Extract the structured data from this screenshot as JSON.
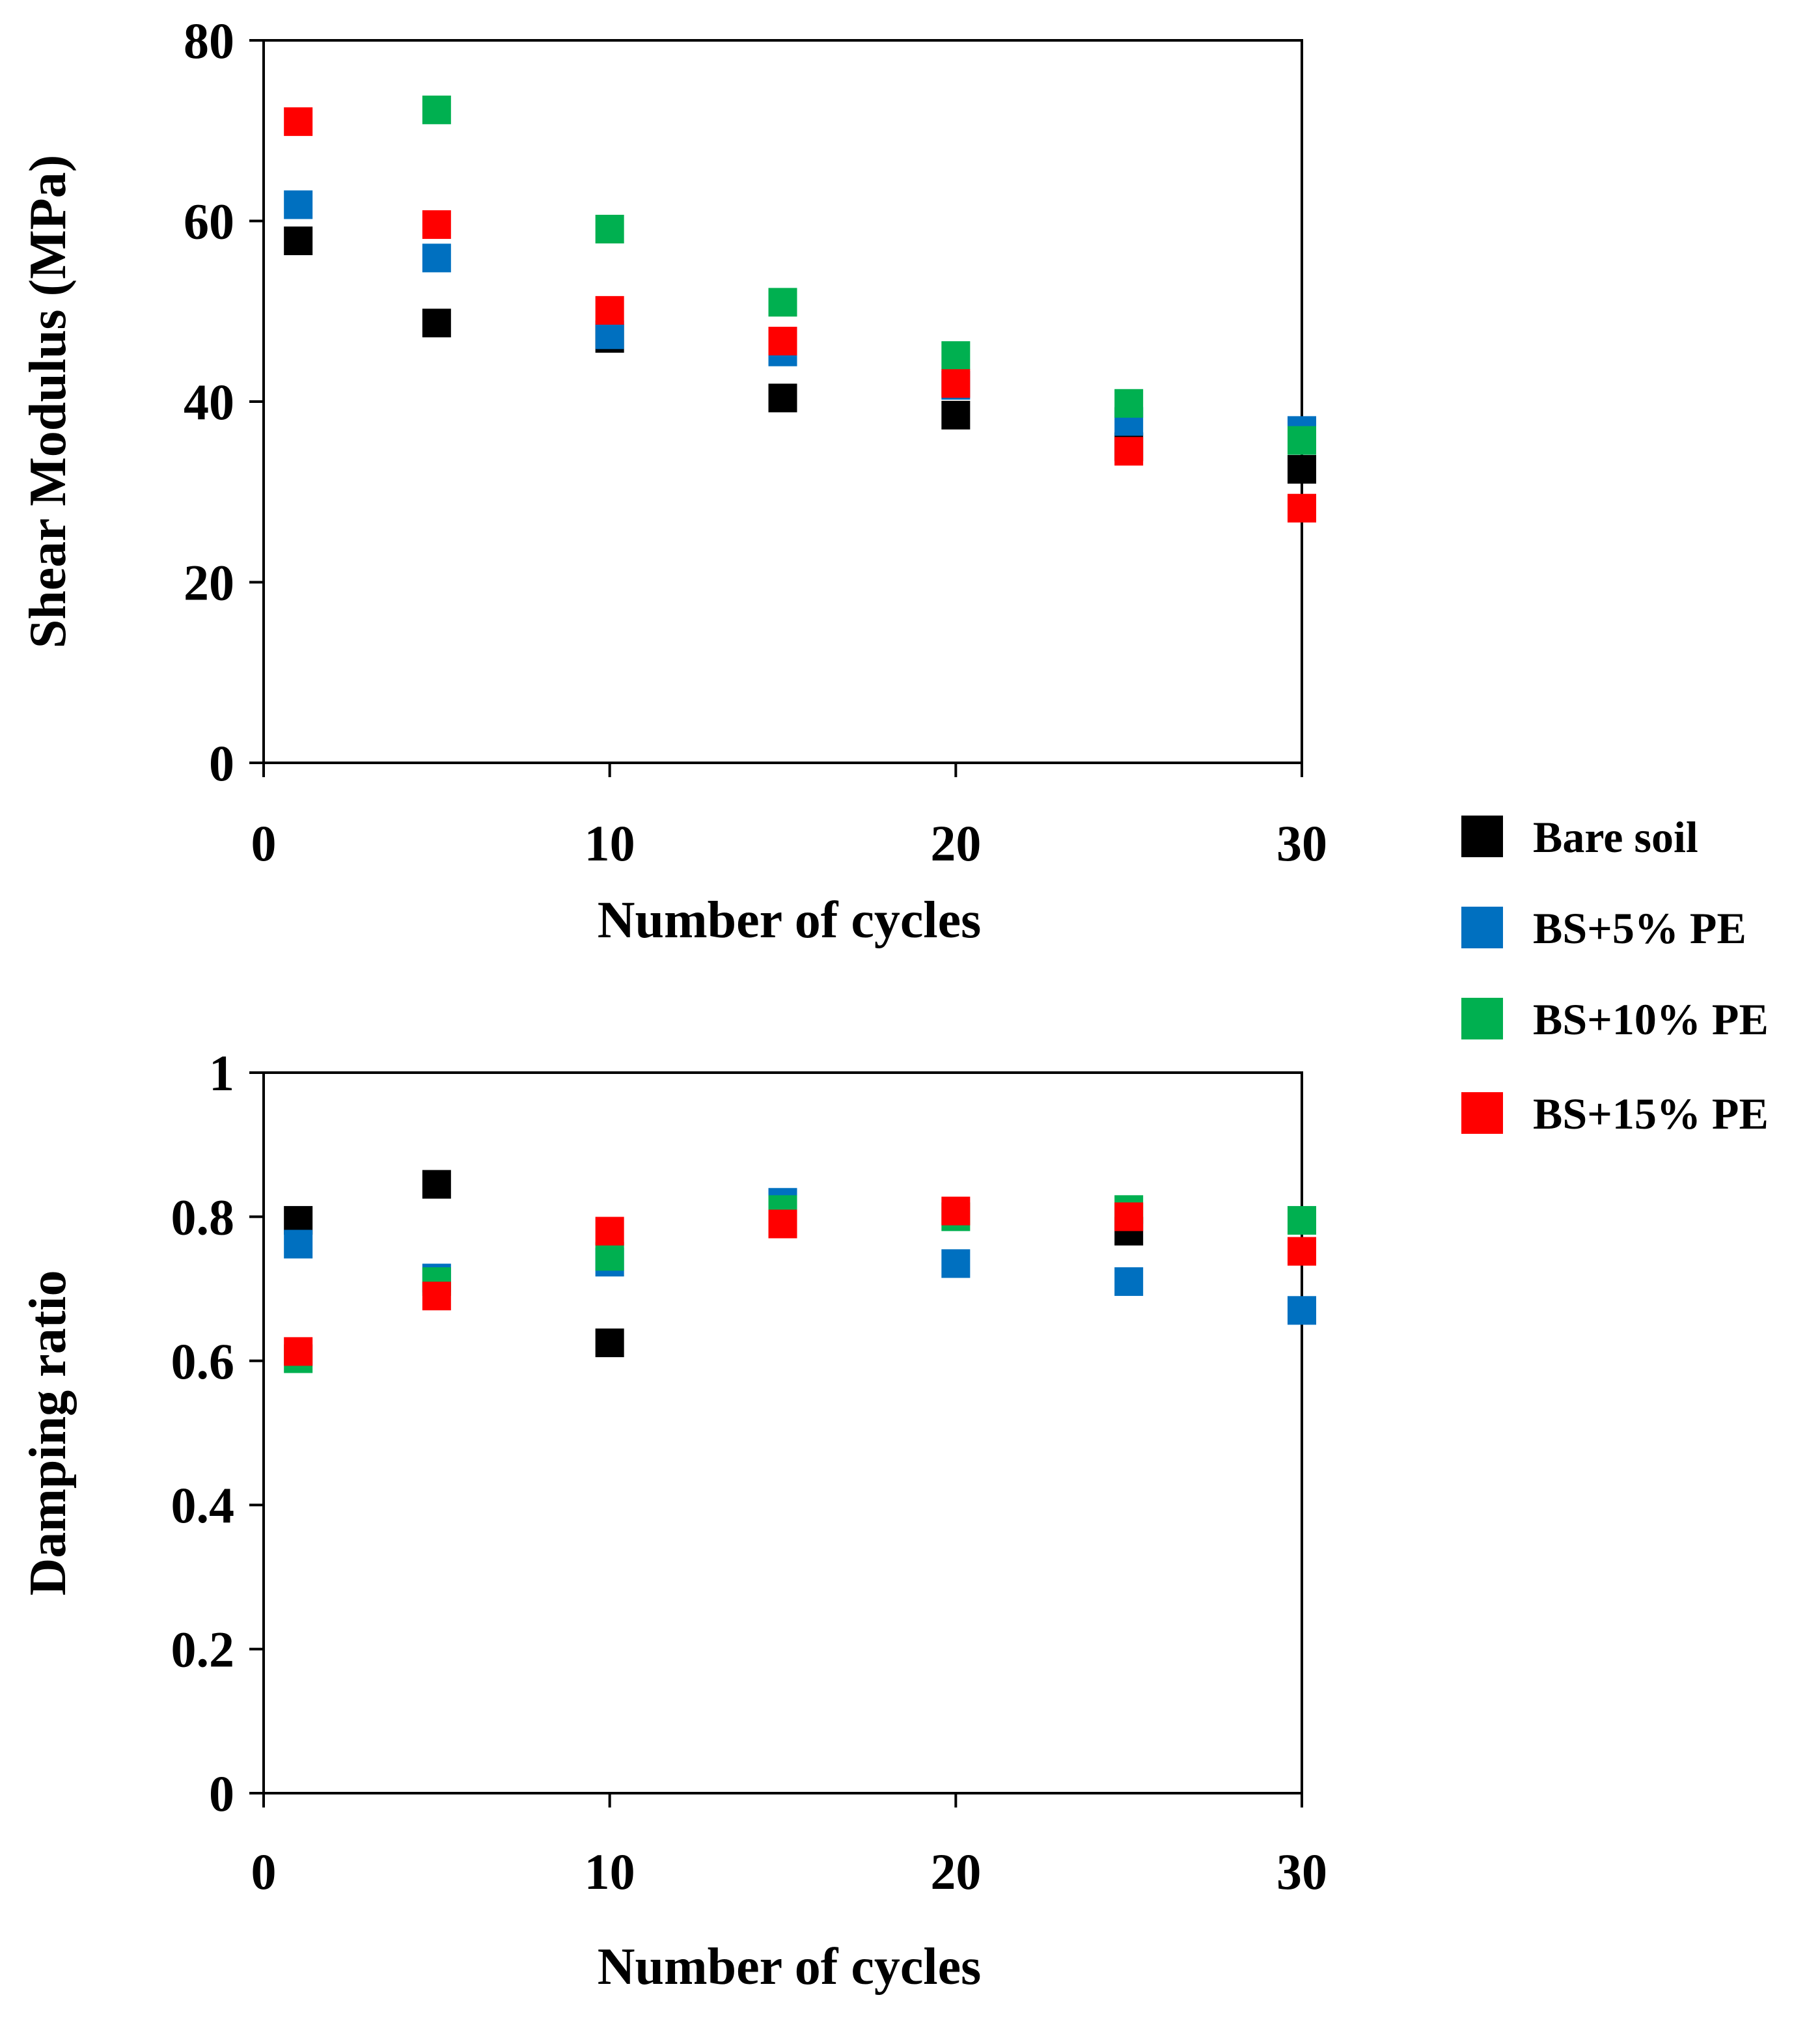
{
  "legend": {
    "entries": [
      {
        "label": "Bare soil",
        "color": "#000000"
      },
      {
        "label": "BS+5% PE",
        "color": "#0070C0"
      },
      {
        "label": "BS+10% PE",
        "color": "#00B050"
      },
      {
        "label": "BS+15% PE",
        "color": "#FF0000"
      }
    ]
  },
  "chart_data": [
    {
      "type": "scatter",
      "title": "",
      "xlabel": "Number of cycles",
      "ylabel": "Shear Modulus (MPa)",
      "xlim": [
        0,
        30
      ],
      "ylim": [
        0,
        80
      ],
      "xticks": [
        "0",
        "10",
        "20",
        "30"
      ],
      "yticks": [
        "0",
        "20",
        "40",
        "60",
        "80"
      ],
      "x": [
        1,
        5,
        10,
        15,
        20,
        25,
        30
      ],
      "series": [
        {
          "name": "Bare soil",
          "color": "#000000",
          "values": [
            57.8,
            48.7,
            47.0,
            40.4,
            38.5,
            35.0,
            32.5
          ]
        },
        {
          "name": "BS+5% PE",
          "color": "#0070C0",
          "values": [
            61.8,
            55.9,
            47.4,
            45.5,
            41.8,
            37.8,
            36.8
          ]
        },
        {
          "name": "BS+10% PE",
          "color": "#00B050",
          "values": [
            null,
            72.3,
            59.1,
            51.0,
            45.1,
            39.8,
            35.7
          ]
        },
        {
          "name": "BS+15% PE",
          "color": "#FF0000",
          "values": [
            71.0,
            59.6,
            50.1,
            46.7,
            42.0,
            34.5,
            28.2
          ]
        }
      ]
    },
    {
      "type": "scatter",
      "title": "",
      "xlabel": "Number of cycles",
      "ylabel": "Damping ratio",
      "xlim": [
        0,
        30
      ],
      "ylim": [
        0,
        1
      ],
      "xticks": [
        "0",
        "10",
        "20",
        "30"
      ],
      "yticks": [
        "0",
        "0.2",
        "0.4",
        "0.6",
        "0.8",
        "1"
      ],
      "x": [
        1,
        5,
        10,
        15,
        20,
        25,
        30
      ],
      "series": [
        {
          "name": "Bare soil",
          "color": "#000000",
          "values": [
            0.795,
            0.845,
            0.625,
            null,
            null,
            0.78,
            null
          ]
        },
        {
          "name": "BS+5% PE",
          "color": "#0070C0",
          "values": [
            0.762,
            0.715,
            0.737,
            0.82,
            0.735,
            0.71,
            0.67
          ]
        },
        {
          "name": "BS+10% PE",
          "color": "#00B050",
          "values": [
            0.603,
            0.71,
            0.745,
            0.81,
            0.8,
            0.81,
            0.795
          ]
        },
        {
          "name": "BS+15% PE",
          "color": "#FF0000",
          "values": [
            0.613,
            0.69,
            0.78,
            0.79,
            0.808,
            0.8,
            0.752
          ]
        }
      ]
    }
  ]
}
